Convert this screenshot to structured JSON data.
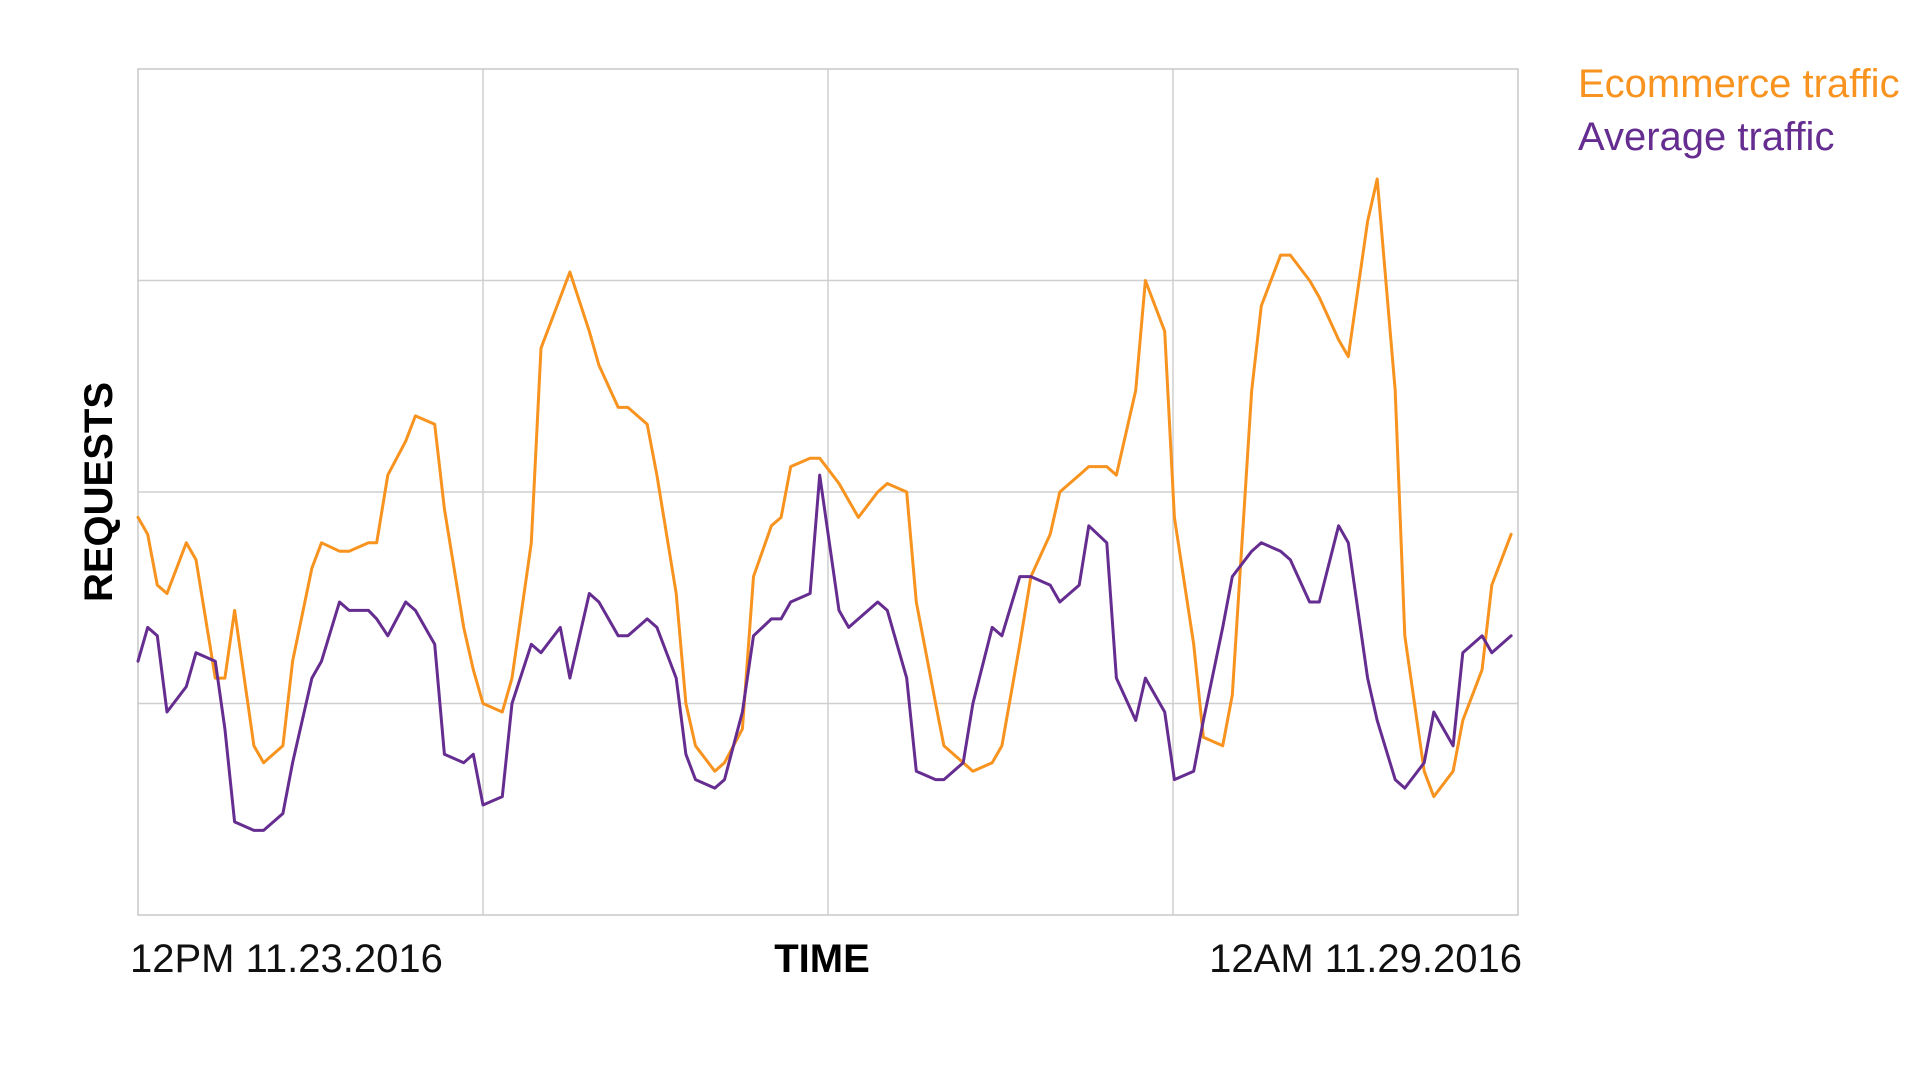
{
  "chart_data": {
    "type": "line",
    "title": "",
    "xlabel": "TIME",
    "ylabel": "REQUESTS",
    "x_tick_labels": [
      "12PM 11.23.2016",
      "12AM 11.29.2016"
    ],
    "x_range": [
      0,
      100
    ],
    "y_range": [
      0,
      100
    ],
    "y_grid_values": [
      25,
      50,
      75
    ],
    "x_grid_values": [
      25,
      50,
      75
    ],
    "grid": true,
    "legend_position": "top-right",
    "x": [
      0,
      0.7,
      1.4,
      2.1,
      3.5,
      4.2,
      5.6,
      6.3,
      7.0,
      8.4,
      9.1,
      10.5,
      11.2,
      12.6,
      13.3,
      14.6,
      15.3,
      16.7,
      17.3,
      18.1,
      19.4,
      20.1,
      21.5,
      22.2,
      23.6,
      24.3,
      25.0,
      26.4,
      27.1,
      28.5,
      29.2,
      30.6,
      31.3,
      32.7,
      33.4,
      34.8,
      35.5,
      36.9,
      37.6,
      39.0,
      39.7,
      40.4,
      41.8,
      42.5,
      43.8,
      44.6,
      45.9,
      46.6,
      47.3,
      48.7,
      49.4,
      50.8,
      51.5,
      52.2,
      53.6,
      54.3,
      55.7,
      56.4,
      57.8,
      58.4,
      59.8,
      60.5,
      61.9,
      62.6,
      63.9,
      64.7,
      66.1,
      66.8,
      68.2,
      68.9,
      70.2,
      70.9,
      72.3,
      73.0,
      74.4,
      75.1,
      76.5,
      77.2,
      78.6,
      79.3,
      80.7,
      81.4,
      82.8,
      83.5,
      84.9,
      85.6,
      87.0,
      87.7,
      89.1,
      89.8,
      91.1,
      91.8,
      93.2,
      93.9,
      95.3,
      96.0,
      97.4,
      98.1,
      99.5
    ],
    "series": [
      {
        "name": "Ecommerce traffic",
        "color": "#F7931E",
        "values": [
          47,
          45,
          39,
          38,
          44,
          42,
          28,
          28,
          36,
          20,
          18,
          20,
          30,
          41,
          44,
          43,
          43,
          44,
          44,
          52,
          56,
          59,
          58,
          48,
          34,
          29,
          25,
          24,
          28,
          44,
          67,
          73,
          76,
          69,
          65,
          60,
          60,
          58,
          52,
          38,
          25,
          20,
          17,
          18,
          22,
          40,
          46,
          47,
          53,
          54,
          54,
          51,
          49,
          47,
          50,
          51,
          50,
          37,
          25,
          20,
          18,
          17,
          18,
          20,
          32,
          40,
          45,
          50,
          52,
          53,
          53,
          52,
          62,
          75,
          69,
          47,
          32,
          21,
          20,
          26,
          62,
          72,
          78,
          78,
          75,
          73,
          68,
          66,
          82,
          87,
          62,
          33,
          17,
          14,
          17,
          23,
          29,
          39,
          45
        ],
        "values_note": "read off the plot in data units where the plot area spans 0 (bottom) to 100 (top)"
      },
      {
        "name": "Average traffic",
        "color": "#662D91",
        "values": [
          30,
          34,
          33,
          24,
          27,
          31,
          30,
          22,
          11,
          10,
          10,
          12,
          18,
          28,
          30,
          37,
          36,
          36,
          35,
          33,
          37,
          36,
          32,
          19,
          18,
          19,
          13,
          14,
          25,
          32,
          31,
          34,
          28,
          38,
          37,
          33,
          33,
          35,
          34,
          28,
          19,
          16,
          15,
          16,
          24,
          33,
          35,
          35,
          37,
          38,
          52,
          36,
          34,
          35,
          37,
          36,
          28,
          17,
          16,
          16,
          18,
          25,
          34,
          33,
          40,
          40,
          39,
          37,
          39,
          46,
          44,
          28,
          23,
          28,
          24,
          16,
          17,
          23,
          34,
          40,
          43,
          44,
          43,
          42,
          37,
          37,
          46,
          44,
          28,
          23,
          16,
          15,
          18,
          24,
          20,
          31,
          33,
          31,
          33
        ],
        "values_note": "read off the plot in data units where the plot area spans 0 (bottom) to 100 (top)"
      }
    ]
  },
  "legend": {
    "items": [
      {
        "label": "Ecommerce traffic",
        "color": "#F7931E"
      },
      {
        "label": "Average traffic",
        "color": "#662D91"
      }
    ]
  }
}
